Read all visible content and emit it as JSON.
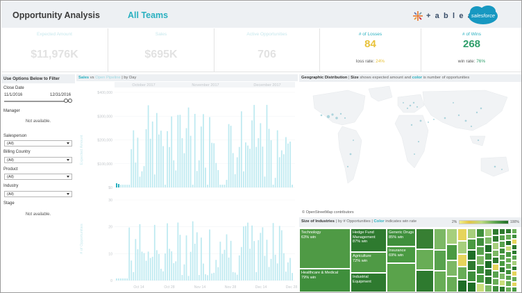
{
  "header": {
    "title": "Opportunity Analysis",
    "team": "All Teams",
    "tableau_wordmark": "+ a b l e a u",
    "salesforce_logo_text": "salesforce"
  },
  "kpis": [
    {
      "label": "Expected Amount",
      "value": "$11,976K"
    },
    {
      "label": "Sales",
      "value": "$695K"
    },
    {
      "label": "Active Opportunities",
      "value": "706"
    }
  ],
  "losses": {
    "label": "# of Losses",
    "value": "84",
    "rate_label": "loss rate:",
    "rate": "24%",
    "color": "#e8c23a"
  },
  "wins": {
    "label": "# of Wins",
    "value": "268",
    "rate_label": "win rate:",
    "rate": "76%",
    "color": "#2e9e6a"
  },
  "filters": {
    "title": "Use Options Below to Filter",
    "close_date_label": "Close Date",
    "date_start": "11/1/2016",
    "date_end": "12/31/2016",
    "manager_label": "Manager",
    "manager_na": "Not available.",
    "salesperson_label": "Salesperson",
    "salesperson_value": "(All)",
    "country_label": "Billing Country",
    "country_value": "(All)",
    "product_label": "Product",
    "product_value": "(All)",
    "industry_label": "Industry",
    "industry_value": "(All)",
    "stage_label": "Stage",
    "stage_na": "Not available."
  },
  "sales_chart": {
    "title_a": "Sales",
    "title_vs": " vs ",
    "title_b": "Open Pipeline",
    "title_c": " | by Day",
    "months": [
      "October 2017",
      "November 2017",
      "December 2017"
    ],
    "y1_label": "Expected Amount",
    "y1_ticks": [
      "$400,000",
      "$300,000",
      "$200,000",
      "$100,000",
      "$0"
    ],
    "y2_label": "# of Opportunities",
    "y2_ticks": [
      "30",
      "20",
      "10",
      "0"
    ],
    "x_ticks": [
      "Oct 14",
      "Oct 28",
      "Nov 14",
      "Nov 28",
      "Dec 14",
      "Dec 28"
    ],
    "bar_color": "#bfeaf1",
    "sales_color": "#2ab0c0"
  },
  "geo": {
    "title": "Geographic Distribution",
    "desc_a": " | ",
    "size_word": "Size",
    "desc_b": " shows expected amount and ",
    "color_word": "color",
    "desc_c": " is number  of opportunities",
    "attribution": "© OpenStreetMap contributors",
    "land_color": "#f1f3f5",
    "dot_color": "#8fc6d2"
  },
  "industries": {
    "title": "Size of Industries",
    "desc_a": " | by # Opportunities | ",
    "color_word": "Color",
    "desc_b": " indicates win rate",
    "legend_min": "2%",
    "legend_max": "100%",
    "tiles": [
      {
        "name": "Technology",
        "rate": "63% win"
      },
      {
        "name": "Healthcare & Medical",
        "rate": "79% win"
      },
      {
        "name": "Hedge Fund Management",
        "rate": "87% win"
      },
      {
        "name": "Agriculture",
        "rate": "72% win"
      },
      {
        "name": "Industrial Equipment",
        "rate": ""
      },
      {
        "name": "Generic Drugs",
        "rate": "85% win"
      },
      {
        "name": "Insurance",
        "rate": "69% win"
      }
    ]
  }
}
